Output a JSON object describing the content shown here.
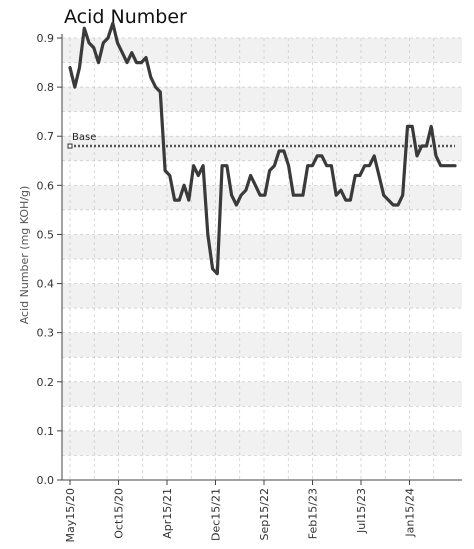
{
  "chart_data": {
    "type": "line",
    "title": "Acid Number",
    "ylabel": "Acid Number (mg KOH/g)",
    "xlabel": "",
    "ylim": [
      0,
      0.9
    ],
    "yticks": [
      "0.0",
      "0.1",
      "0.2",
      "0.3",
      "0.4",
      "0.5",
      "0.6",
      "0.7",
      "0.8",
      "0.9"
    ],
    "xticks": [
      "May15/20",
      "Oct15/20",
      "Apr15/21",
      "Dec15/21",
      "Sep15/22",
      "Feb15/23",
      "Jul15/23",
      "Jan15/24"
    ],
    "grid": true,
    "series": [
      {
        "name": "",
        "color": "#3a3a3a",
        "x": [
          0,
          0.5,
          1,
          1.5,
          2,
          2.5,
          3,
          3.5,
          4,
          4.5,
          5,
          5.5,
          6,
          6.5,
          7,
          7.5,
          8,
          8.5,
          9,
          9.5,
          10,
          10.5,
          11,
          11.5,
          12,
          12.5,
          13,
          13.5,
          14,
          14.5,
          15,
          15.5,
          16,
          16.5,
          17,
          17.5,
          18,
          18.5,
          19,
          19.5,
          20,
          20.5,
          21,
          21.5,
          22,
          22.5,
          23,
          23.5,
          24,
          24.5,
          25,
          25.5,
          26,
          26.5,
          27,
          27.5,
          28,
          28.5,
          29,
          29.5,
          30,
          30.5,
          31,
          31.5,
          32,
          32.5,
          33,
          33.5,
          34,
          34.5,
          35,
          35.5,
          36,
          36.5,
          37,
          37.5,
          38,
          38.5,
          39,
          39.5,
          40,
          40.5
        ],
        "values": [
          0.84,
          0.8,
          0.84,
          0.92,
          0.89,
          0.88,
          0.85,
          0.89,
          0.9,
          0.93,
          0.89,
          0.87,
          0.85,
          0.87,
          0.85,
          0.85,
          0.86,
          0.82,
          0.8,
          0.79,
          0.63,
          0.62,
          0.57,
          0.57,
          0.6,
          0.57,
          0.64,
          0.62,
          0.64,
          0.5,
          0.43,
          0.42,
          0.64,
          0.64,
          0.58,
          0.56,
          0.58,
          0.59,
          0.62,
          0.6,
          0.58,
          0.58,
          0.63,
          0.64,
          0.67,
          0.67,
          0.64,
          0.58,
          0.58,
          0.58,
          0.64,
          0.64,
          0.66,
          0.66,
          0.64,
          0.64,
          0.58,
          0.59,
          0.57,
          0.57,
          0.62,
          0.62,
          0.64,
          0.64,
          0.66,
          0.62,
          0.58,
          0.57,
          0.56,
          0.56,
          0.58,
          0.72,
          0.72,
          0.66,
          0.68,
          0.68,
          0.72,
          0.66,
          0.64,
          0.64,
          0.64,
          0.64
        ]
      }
    ],
    "baseline": {
      "label": "Base",
      "value": 0.68,
      "color": "#555555"
    },
    "colors": {
      "band_light": "#f1f1f1",
      "band_dark": "#ffffff",
      "grid": "#c8c8c8",
      "axis": "#444444"
    }
  }
}
